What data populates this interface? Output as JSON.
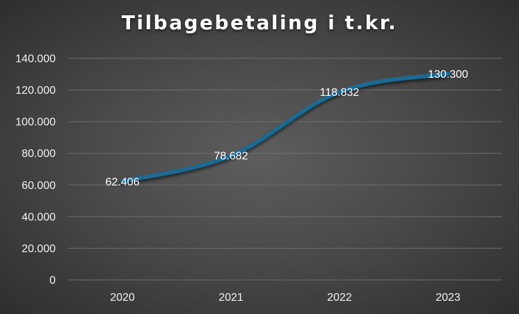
{
  "chart_data": {
    "type": "line",
    "title": "Tilbagebetaling i t.kr.",
    "categories": [
      "2020",
      "2021",
      "2022",
      "2023"
    ],
    "series": [
      {
        "values": [
          62406,
          78682,
          118832,
          130300
        ],
        "data_labels": [
          "62.406",
          "78.682",
          "118.832",
          "130.300"
        ],
        "color": "#1f6a92"
      }
    ],
    "y_tick_labels": [
      "0",
      "20.000",
      "40.000",
      "60.000",
      "80.000",
      "100.000",
      "120.000",
      "140.000"
    ],
    "ylim": [
      0,
      140000
    ],
    "y_step": 20000,
    "grid": true,
    "legend": "none",
    "background": "#4a4a4a",
    "gridline_color": "#6e6e6e"
  }
}
